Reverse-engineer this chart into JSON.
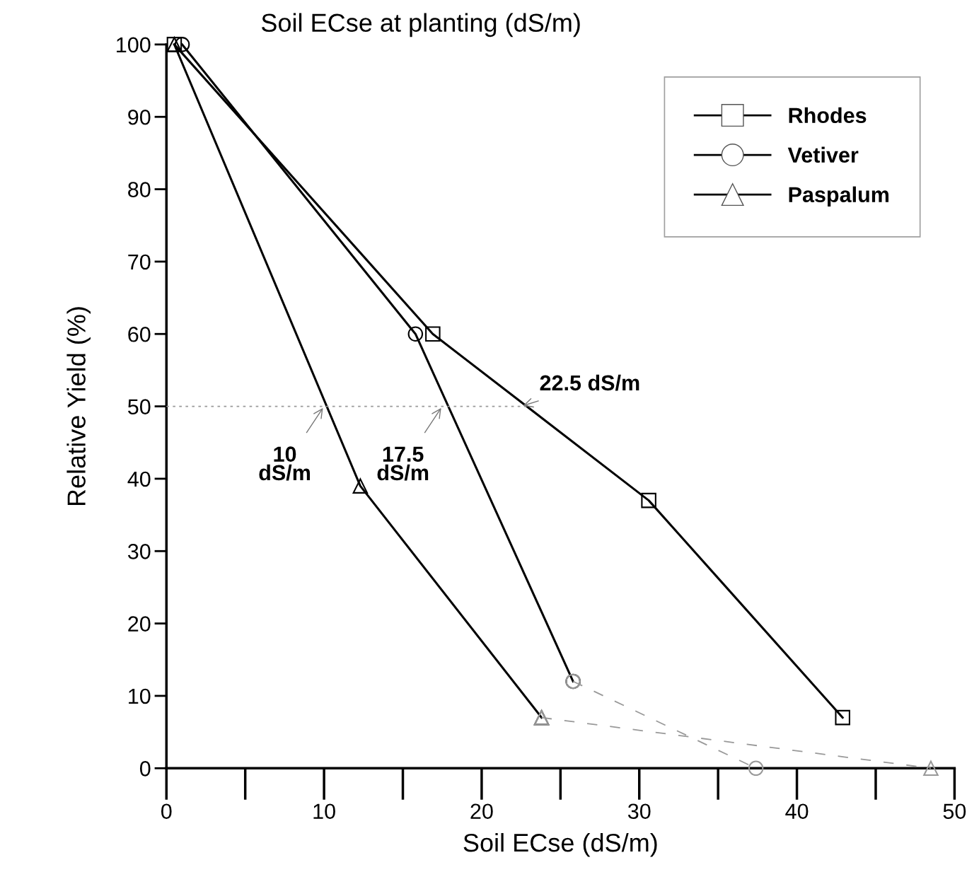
{
  "chart_data": {
    "type": "line",
    "title": "Soil ECse at planting (dS/m)",
    "xlabel": "Soil ECse (dS/m)",
    "ylabel": "Relative Yield (%)",
    "series": [
      {
        "name": "Rhodes",
        "color": "#000000",
        "marker": "square",
        "x": [
          0.5,
          16.9,
          30.6,
          42.9
        ],
        "values": [
          100,
          60,
          37,
          7
        ]
      },
      {
        "name": "Vetiver",
        "color": "#000000",
        "marker": "circle",
        "x": [
          1.0,
          15.8,
          25.8
        ],
        "values": [
          100,
          60,
          12
        ]
      },
      {
        "name": "Paspalum",
        "color": "#000000",
        "marker": "triangle",
        "x": [
          0.5,
          12.3,
          23.8
        ],
        "values": [
          100,
          39,
          7
        ]
      },
      {
        "type": "line",
        "color": "#999999",
        "line_style": "dashed",
        "marker": "circle",
        "x": [
          25.8,
          37.4
        ],
        "values": [
          12,
          0
        ]
      },
      {
        "type": "line",
        "color": "#999999",
        "line_style": "dashed",
        "marker": "triangle",
        "x": [
          23.8,
          48.5
        ],
        "values": [
          7,
          0
        ]
      },
      {
        "type": "line",
        "color": "#999999",
        "line_style": "dotted",
        "marker": "none",
        "x": [
          0,
          22.9
        ],
        "values": [
          50,
          50
        ]
      }
    ],
    "annotations": [
      {
        "text": "10\ndS/m",
        "x": 10,
        "y": 50
      },
      {
        "text": "17.5\ndS/m",
        "x": 17.5,
        "y": 50
      },
      {
        "text": "22.5 dS/m",
        "x": 22.5,
        "y": 50
      }
    ],
    "xlim": [
      0,
      50
    ],
    "xticks": [
      0,
      10,
      20,
      30,
      40,
      50
    ],
    "ylim": [
      0,
      100
    ],
    "yticks": [
      0,
      10,
      20,
      30,
      40,
      50,
      60,
      70,
      80,
      90,
      100
    ],
    "grid": false,
    "legend": "top right"
  }
}
